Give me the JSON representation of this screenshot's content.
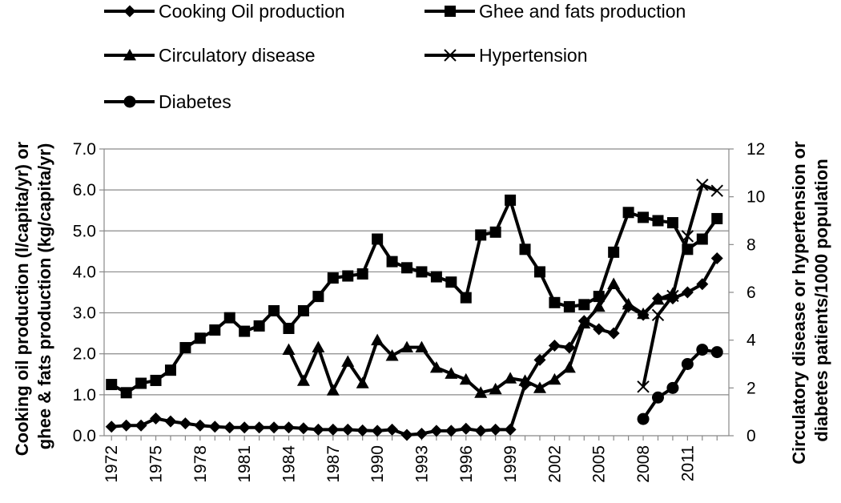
{
  "chart_data": {
    "type": "line",
    "x": [
      1972,
      1973,
      1974,
      1975,
      1976,
      1977,
      1978,
      1979,
      1980,
      1981,
      1982,
      1983,
      1984,
      1985,
      1986,
      1987,
      1988,
      1989,
      1990,
      1991,
      1992,
      1993,
      1994,
      1995,
      1996,
      1997,
      1998,
      1999,
      2000,
      2001,
      2002,
      2003,
      2004,
      2005,
      2006,
      2007,
      2008,
      2009,
      2010,
      2011,
      2012,
      2013
    ],
    "x_tick_labels": [
      "1972",
      "1975",
      "1978",
      "1981",
      "1984",
      "1987",
      "1990",
      "1993",
      "1996",
      "1999",
      "2002",
      "2005",
      "2008",
      "2011"
    ],
    "y_left": {
      "label": "Cooking oil production  (l/capita/yr) or ghee & fats production  (kg/capita/yr)",
      "range": [
        0,
        7
      ],
      "tick_labels": [
        "0.0",
        "1.0",
        "2.0",
        "3.0",
        "4.0",
        "5.0",
        "6.0",
        "7.0"
      ]
    },
    "y_right": {
      "label": "Circulatory disease or hypertension or diabetes patients/1000 population",
      "range": [
        0,
        12
      ],
      "tick_labels": [
        "0",
        "2",
        "4",
        "6",
        "8",
        "10",
        "12"
      ]
    },
    "grid": "horizontal",
    "legend_position": "top",
    "series": [
      {
        "name": "Cooking Oil production",
        "axis": "left",
        "marker": "diamond",
        "x": [
          1972,
          1973,
          1974,
          1975,
          1976,
          1977,
          1978,
          1979,
          1980,
          1981,
          1982,
          1983,
          1984,
          1985,
          1986,
          1987,
          1988,
          1989,
          1990,
          1991,
          1992,
          1993,
          1994,
          1995,
          1996,
          1997,
          1998,
          1999,
          2000,
          2001,
          2002,
          2003,
          2004,
          2005,
          2006,
          2007,
          2008,
          2009,
          2010,
          2011,
          2012,
          2013
        ],
        "values": [
          0.22,
          0.25,
          0.25,
          0.42,
          0.35,
          0.3,
          0.25,
          0.22,
          0.2,
          0.2,
          0.2,
          0.2,
          0.2,
          0.18,
          0.15,
          0.15,
          0.15,
          0.13,
          0.12,
          0.15,
          0.02,
          0.05,
          0.12,
          0.12,
          0.17,
          0.12,
          0.15,
          0.15,
          1.25,
          1.85,
          2.2,
          2.15,
          2.8,
          2.6,
          2.5,
          3.15,
          2.95,
          3.35,
          3.35,
          3.5,
          3.7,
          4.33
        ]
      },
      {
        "name": "Ghee and fats production",
        "axis": "left",
        "marker": "square",
        "x": [
          1972,
          1973,
          1974,
          1975,
          1976,
          1977,
          1978,
          1979,
          1980,
          1981,
          1982,
          1983,
          1984,
          1985,
          1986,
          1987,
          1988,
          1989,
          1990,
          1991,
          1992,
          1993,
          1994,
          1995,
          1996,
          1997,
          1998,
          1999,
          2000,
          2001,
          2002,
          2003,
          2004,
          2005,
          2006,
          2007,
          2008,
          2009,
          2010,
          2011,
          2012,
          2013
        ],
        "values": [
          1.25,
          1.05,
          1.28,
          1.35,
          1.6,
          2.15,
          2.38,
          2.58,
          2.88,
          2.55,
          2.68,
          3.05,
          2.62,
          3.05,
          3.4,
          3.85,
          3.9,
          3.95,
          4.8,
          4.25,
          4.1,
          4.0,
          3.88,
          3.75,
          3.37,
          4.9,
          4.97,
          5.75,
          4.55,
          4.0,
          3.25,
          3.15,
          3.2,
          3.4,
          4.48,
          5.45,
          5.33,
          5.25,
          5.2,
          4.55,
          4.8,
          5.3
        ]
      },
      {
        "name": "Circulatory disease",
        "axis": "right",
        "marker": "triangle",
        "x": [
          1984,
          1985,
          1986,
          1987,
          1988,
          1989,
          1990,
          1991,
          1992,
          1993,
          1994,
          1995,
          1996,
          1997,
          1998,
          1999,
          2000,
          2001,
          2002,
          2003,
          2004,
          2005,
          2006,
          2007,
          2008,
          2009,
          2010
        ],
        "values": [
          3.6,
          2.3,
          3.7,
          1.9,
          3.1,
          2.2,
          4.0,
          3.35,
          3.7,
          3.7,
          2.85,
          2.6,
          2.35,
          1.8,
          1.95,
          2.4,
          2.3,
          2.0,
          2.35,
          2.85,
          4.7,
          5.4,
          6.35,
          5.5,
          5.1,
          5.7,
          5.95
        ]
      },
      {
        "name": "Hypertension",
        "axis": "right",
        "marker": "x",
        "x": [
          2008,
          2009,
          2010,
          2011,
          2012,
          2013
        ],
        "values": [
          2.05,
          5.05,
          5.85,
          8.35,
          10.5,
          10.25
        ]
      },
      {
        "name": "Diabetes",
        "axis": "right",
        "marker": "circle",
        "x": [
          2008,
          2009,
          2010,
          2011,
          2012,
          2013
        ],
        "values": [
          0.7,
          1.6,
          2.0,
          3.0,
          3.6,
          3.5
        ]
      }
    ]
  }
}
